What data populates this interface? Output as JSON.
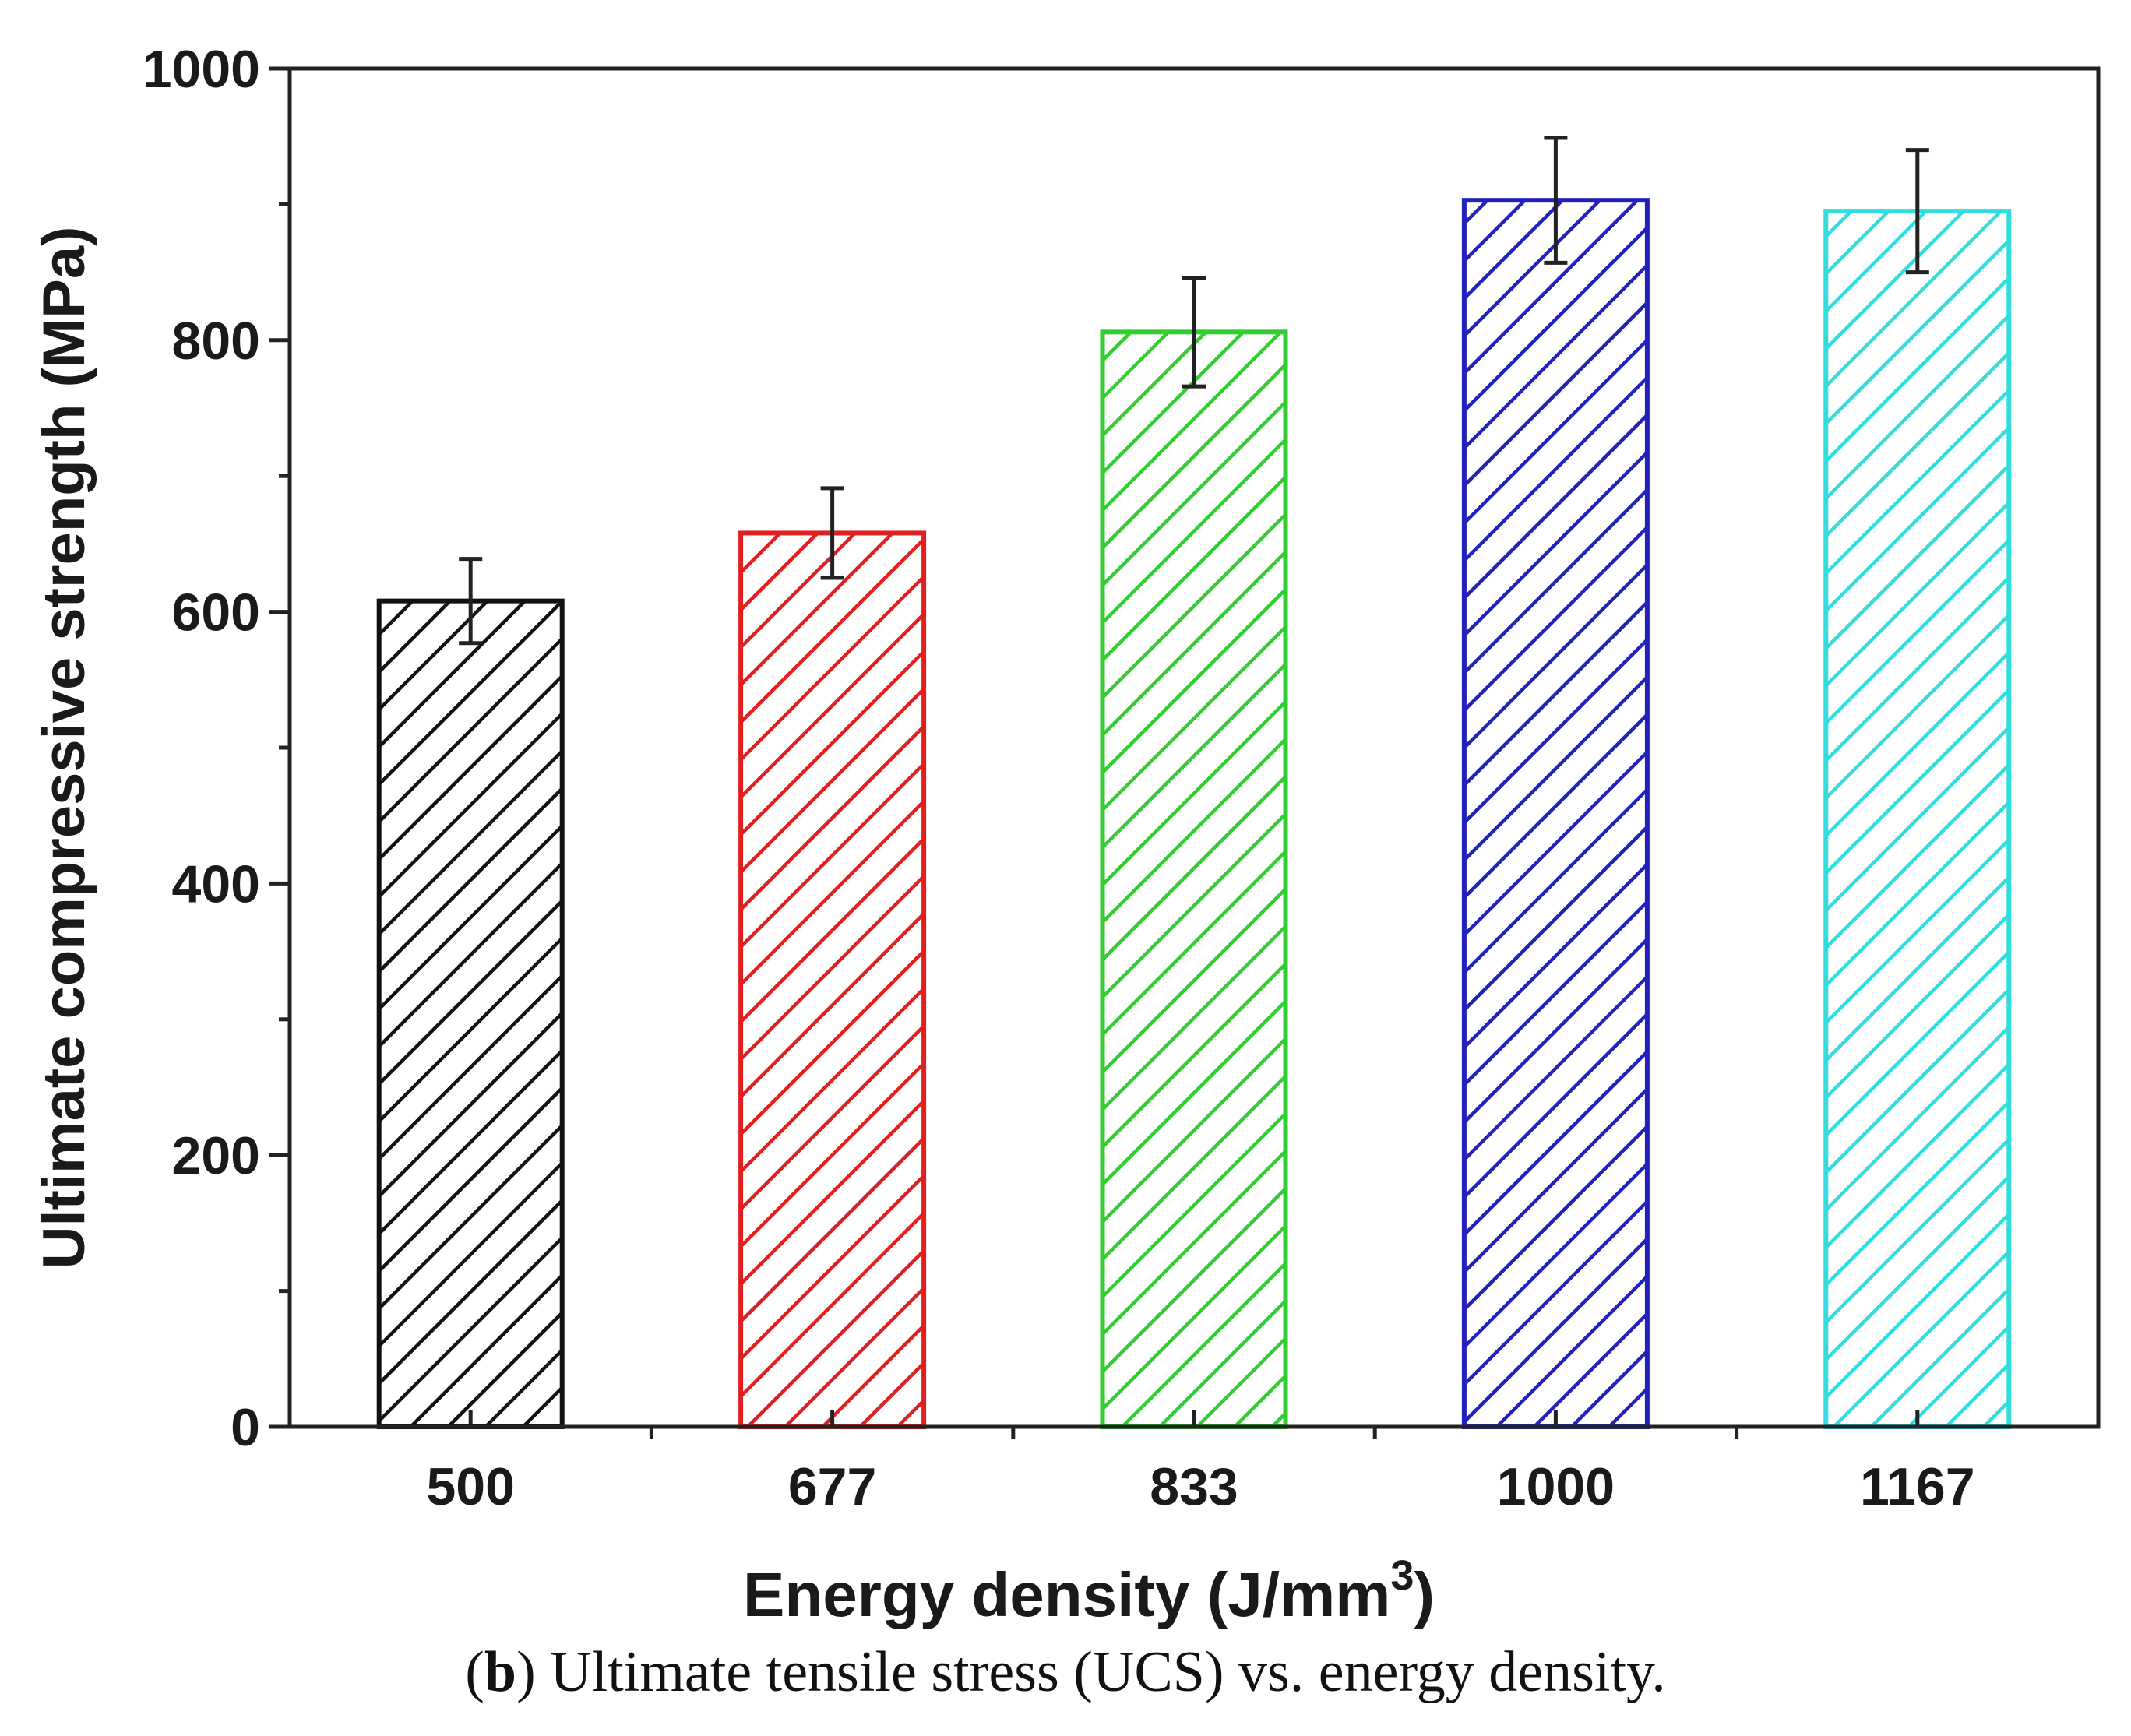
{
  "chart_data": {
    "type": "bar",
    "categories": [
      "500",
      "677",
      "833",
      "1000",
      "1167"
    ],
    "values": [
      608,
      658,
      806,
      903,
      895
    ],
    "errors": [
      31,
      33,
      40,
      46,
      45
    ],
    "bar_colors": [
      "#111111",
      "#e02020",
      "#33cc33",
      "#2222bb",
      "#33dddd"
    ],
    "fill_pattern": "diagonal-hatch",
    "title": "",
    "xlabel": "Energy density (J/mm",
    "xlabel_superscript": "3",
    "xlabel_suffix": ")",
    "ylabel": "Ultimate compressive strength (MPa)",
    "ylim": [
      0,
      1000
    ],
    "yticks": [
      0,
      200,
      400,
      600,
      800,
      1000
    ],
    "y_minor_step": 100,
    "grid": false,
    "legend": "none"
  },
  "caption": {
    "label": "b",
    "text": " Ultimate tensile stress (UCS) vs. energy density."
  }
}
